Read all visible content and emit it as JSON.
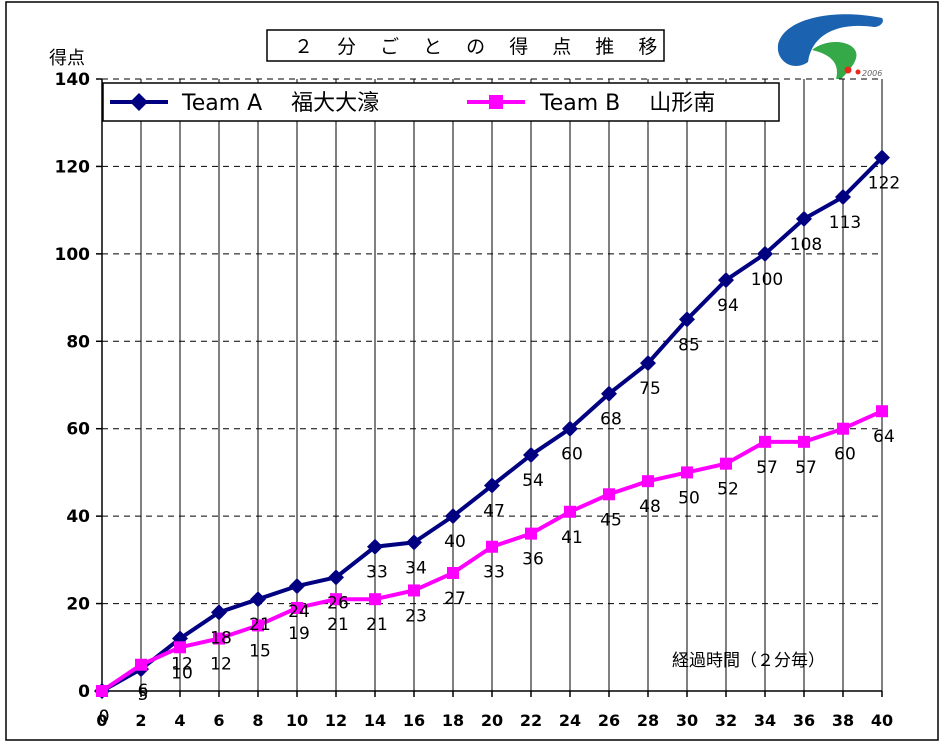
{
  "chart_data": {
    "type": "line",
    "title": "２ 分 ご と の 得 点 推 移",
    "ylabel": "得点",
    "xlabel": "経過時間（２分毎）",
    "x": [
      0,
      2,
      4,
      6,
      8,
      10,
      12,
      14,
      16,
      18,
      20,
      22,
      24,
      26,
      28,
      30,
      32,
      34,
      36,
      38,
      40
    ],
    "ylim": [
      0,
      140
    ],
    "yticks": [
      0,
      20,
      40,
      60,
      80,
      100,
      120,
      140
    ],
    "grid": true,
    "legend_position": "top",
    "series": [
      {
        "legend": "Team A　 福大大濠",
        "color": "#000080",
        "marker": "diamond",
        "values": [
          0,
          5,
          12,
          18,
          21,
          24,
          26,
          33,
          34,
          40,
          47,
          54,
          60,
          68,
          75,
          85,
          94,
          100,
          108,
          113,
          122
        ]
      },
      {
        "legend": "Team B　 山形南",
        "color": "#ff00ff",
        "marker": "square",
        "values": [
          0,
          6,
          10,
          12,
          15,
          19,
          21,
          21,
          23,
          27,
          33,
          36,
          41,
          45,
          48,
          50,
          52,
          57,
          57,
          60,
          64
        ]
      }
    ]
  },
  "logo": {
    "caption": "2006",
    "colors": [
      "#1b63b0",
      "#35a848",
      "#e8291c"
    ]
  }
}
